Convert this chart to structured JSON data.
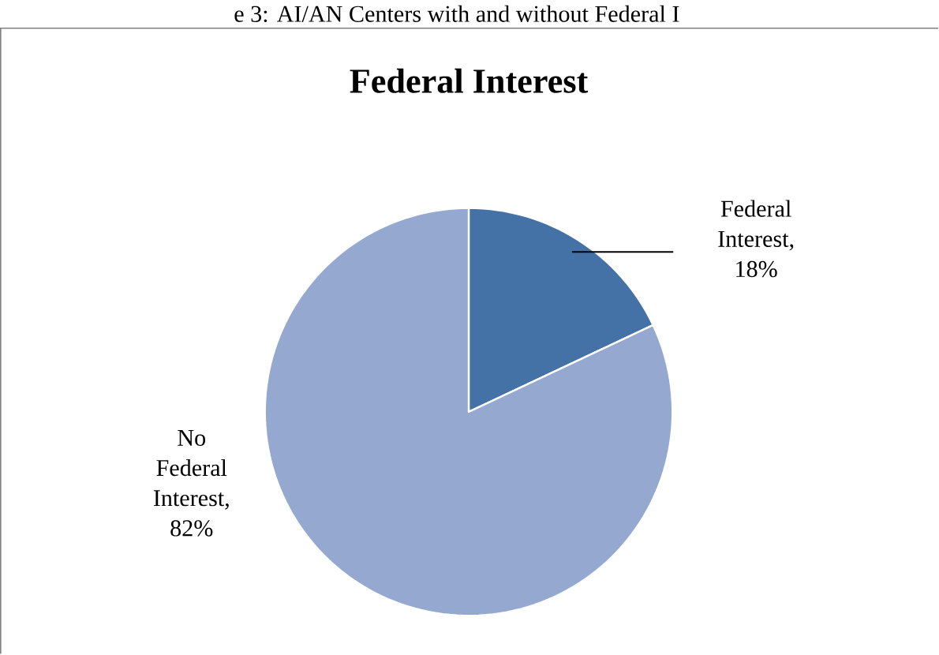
{
  "chart_data": {
    "type": "pie",
    "title": "Federal Interest",
    "annotations": [
      "e 3: AI/AN Centers with and without Federal I"
    ],
    "categories": [
      "Federal Interest",
      "No Federal Interest"
    ],
    "values": [
      18,
      82
    ],
    "value_labels": [
      ", 18%",
      ", 82%"
    ],
    "colors": [
      "#4471a6",
      "#95a9d0"
    ]
  }
}
